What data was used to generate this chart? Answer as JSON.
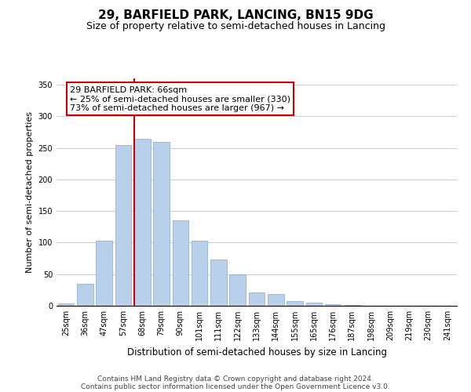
{
  "title": "29, BARFIELD PARK, LANCING, BN15 9DG",
  "subtitle": "Size of property relative to semi-detached houses in Lancing",
  "xlabel": "Distribution of semi-detached houses by size in Lancing",
  "ylabel": "Number of semi-detached properties",
  "bin_labels": [
    "25sqm",
    "36sqm",
    "47sqm",
    "57sqm",
    "68sqm",
    "79sqm",
    "90sqm",
    "101sqm",
    "111sqm",
    "122sqm",
    "133sqm",
    "144sqm",
    "155sqm",
    "165sqm",
    "176sqm",
    "187sqm",
    "198sqm",
    "209sqm",
    "219sqm",
    "230sqm",
    "241sqm"
  ],
  "bar_values": [
    4,
    35,
    103,
    255,
    265,
    260,
    135,
    103,
    73,
    50,
    21,
    19,
    8,
    5,
    3,
    1,
    0,
    0,
    0,
    0,
    0
  ],
  "bar_color": "#b8d0ea",
  "bar_edge_color": "#88aacc",
  "property_bin_index": 4,
  "property_line_color": "#cc0000",
  "annotation_text": "29 BARFIELD PARK: 66sqm\n← 25% of semi-detached houses are smaller (330)\n73% of semi-detached houses are larger (967) →",
  "annotation_box_color": "#ffffff",
  "annotation_box_edge_color": "#cc0000",
  "ylim": [
    0,
    360
  ],
  "yticks": [
    0,
    50,
    100,
    150,
    200,
    250,
    300,
    350
  ],
  "footer_line1": "Contains HM Land Registry data © Crown copyright and database right 2024.",
  "footer_line2": "Contains public sector information licensed under the Open Government Licence v3.0.",
  "background_color": "#ffffff",
  "grid_color": "#cccccc",
  "title_fontsize": 11,
  "subtitle_fontsize": 9,
  "xlabel_fontsize": 8.5,
  "ylabel_fontsize": 8,
  "tick_fontsize": 7,
  "annotation_fontsize": 8,
  "footer_fontsize": 6.5
}
